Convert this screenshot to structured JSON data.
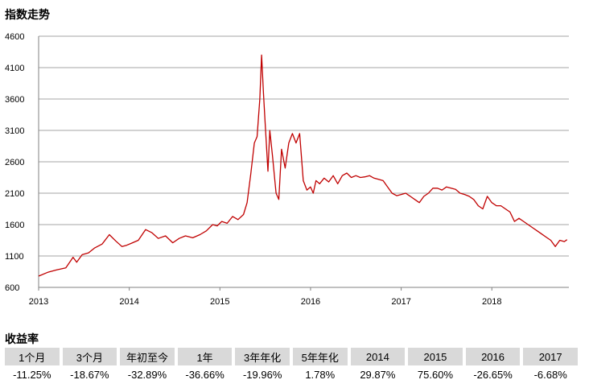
{
  "chart_title": "指数走势",
  "returns_title": "收益率",
  "colors": {
    "line": "#c00000",
    "grid": "#a6a6a6",
    "header_bg": "#d9d9d9"
  },
  "chart_data": {
    "type": "line",
    "title": "",
    "xlabel": "",
    "ylabel": "",
    "x_ticks": [
      "2013",
      "2014",
      "2015",
      "2016",
      "2017",
      "2018"
    ],
    "y_ticks": [
      600,
      1100,
      1600,
      2100,
      2600,
      3100,
      3600,
      4100,
      4600
    ],
    "xlim": [
      2013.0,
      2018.85
    ],
    "ylim": [
      600,
      4600
    ],
    "grid": true,
    "series": [
      {
        "x": [
          2013.0,
          2013.1,
          2013.2,
          2013.3,
          2013.38,
          2013.42,
          2013.48,
          2013.55,
          2013.62,
          2013.7,
          2013.78,
          2013.85,
          2013.92,
          2013.97,
          2014.02,
          2014.1,
          2014.18,
          2014.25,
          2014.32,
          2014.4,
          2014.48,
          2014.55,
          2014.62,
          2014.7,
          2014.78,
          2014.85,
          2014.92,
          2014.97,
          2015.02,
          2015.08,
          2015.14,
          2015.2,
          2015.26,
          2015.3,
          2015.34,
          2015.38,
          2015.41,
          2015.44,
          2015.46,
          2015.48,
          2015.5,
          2015.53,
          2015.55,
          2015.58,
          2015.62,
          2015.65,
          2015.68,
          2015.72,
          2015.76,
          2015.8,
          2015.84,
          2015.88,
          2015.92,
          2015.96,
          2016.0,
          2016.03,
          2016.06,
          2016.1,
          2016.15,
          2016.2,
          2016.25,
          2016.3,
          2016.35,
          2016.4,
          2016.45,
          2016.5,
          2016.55,
          2016.6,
          2016.65,
          2016.7,
          2016.75,
          2016.8,
          2016.85,
          2016.9,
          2016.95,
          2017.0,
          2017.05,
          2017.1,
          2017.15,
          2017.2,
          2017.25,
          2017.3,
          2017.35,
          2017.4,
          2017.45,
          2017.5,
          2017.55,
          2017.6,
          2017.65,
          2017.7,
          2017.75,
          2017.8,
          2017.85,
          2017.9,
          2017.95,
          2018.0,
          2018.05,
          2018.1,
          2018.15,
          2018.2,
          2018.25,
          2018.3,
          2018.35,
          2018.4,
          2018.45,
          2018.5,
          2018.55,
          2018.6,
          2018.65,
          2018.7,
          2018.75,
          2018.8,
          2018.83
        ],
        "y": [
          780,
          840,
          880,
          910,
          1080,
          1000,
          1120,
          1150,
          1230,
          1290,
          1440,
          1340,
          1250,
          1270,
          1300,
          1350,
          1520,
          1470,
          1380,
          1420,
          1310,
          1380,
          1420,
          1390,
          1440,
          1500,
          1600,
          1580,
          1650,
          1620,
          1730,
          1680,
          1760,
          1950,
          2400,
          2900,
          3000,
          3600,
          4300,
          3700,
          3200,
          2450,
          3100,
          2700,
          2100,
          2000,
          2800,
          2500,
          2900,
          3050,
          2900,
          3050,
          2300,
          2150,
          2200,
          2100,
          2300,
          2250,
          2340,
          2280,
          2380,
          2250,
          2380,
          2420,
          2350,
          2380,
          2350,
          2360,
          2380,
          2340,
          2320,
          2300,
          2200,
          2100,
          2060,
          2080,
          2100,
          2050,
          2000,
          1950,
          2050,
          2100,
          2180,
          2180,
          2150,
          2200,
          2180,
          2160,
          2100,
          2080,
          2050,
          2000,
          1900,
          1850,
          2050,
          1950,
          1900,
          1900,
          1850,
          1800,
          1650,
          1700,
          1650,
          1600,
          1550,
          1500,
          1450,
          1400,
          1350,
          1250,
          1350,
          1330,
          1360
        ]
      }
    ]
  },
  "returns": {
    "headers": [
      "1个月",
      "3个月",
      "年初至今",
      "1年",
      "3年年化",
      "5年年化",
      "2014",
      "2015",
      "2016",
      "2017"
    ],
    "values": [
      "-11.25%",
      "-18.67%",
      "-32.89%",
      "-36.66%",
      "-19.96%",
      "1.78%",
      "29.87%",
      "75.60%",
      "-26.65%",
      "-6.68%"
    ]
  }
}
